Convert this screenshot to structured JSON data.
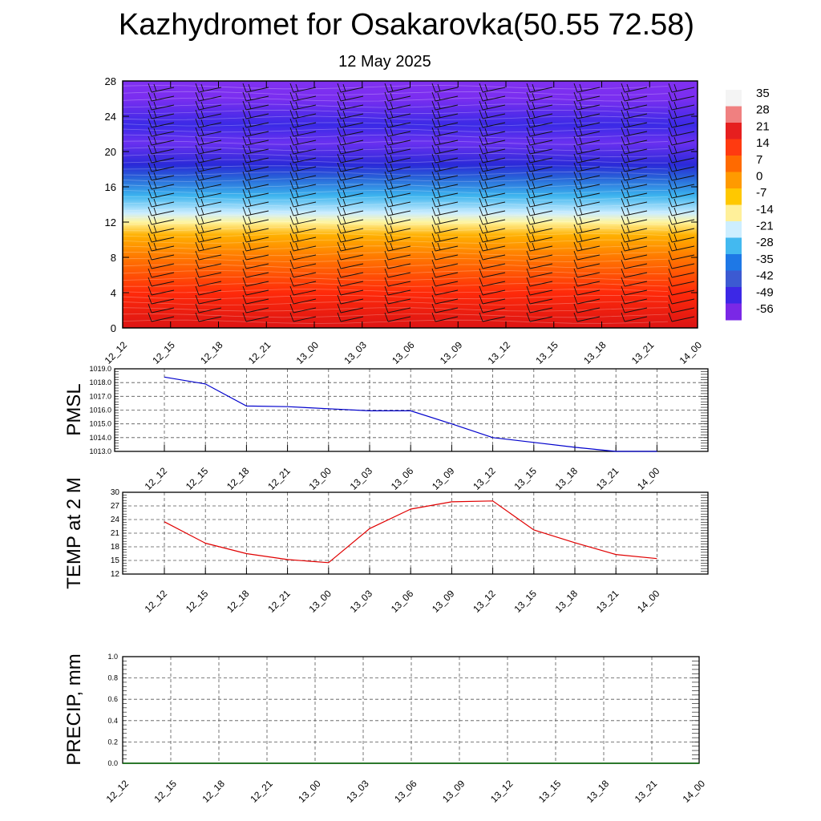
{
  "title": "Kazhydromet for Osakarovka(50.55 72.58)",
  "subtitle": "12 May 2025",
  "colors": {
    "pmsl_line": "#0000cc",
    "temp_line": "#e00000",
    "precip_line": "#006400",
    "grid": "#555555"
  },
  "chart_data": [
    {
      "type": "heatmap",
      "title": "",
      "x": [
        "12_12",
        "12_15",
        "12_18",
        "12_21",
        "13_00",
        "13_03",
        "13_06",
        "13_09",
        "13_12",
        "13_15",
        "13_18",
        "13_21",
        "14_00"
      ],
      "ylim": [
        0,
        28
      ],
      "yticks": [
        0,
        4,
        8,
        12,
        16,
        20,
        24,
        28
      ],
      "colorbar": {
        "labels": [
          "35",
          "28",
          "21",
          "14",
          "7",
          "0",
          "-7",
          "-14",
          "-21",
          "-28",
          "-35",
          "-42",
          "-49",
          "-56"
        ],
        "colors": [
          "#f4f4f4",
          "#f08080",
          "#e61f1f",
          "#ff3a10",
          "#ff6a00",
          "#ff9a00",
          "#ffc800",
          "#fff09a",
          "#cdeeff",
          "#43b9f0",
          "#1e78e6",
          "#3c5ad2",
          "#3c28e6",
          "#7a28e6"
        ]
      },
      "profile": [
        {
          "y": 0,
          "color": "#dc1414"
        },
        {
          "y": 4,
          "color": "#ff2a0a"
        },
        {
          "y": 8,
          "color": "#ff7800"
        },
        {
          "y": 10.5,
          "color": "#ffb000"
        },
        {
          "y": 12,
          "color": "#fff5a0"
        },
        {
          "y": 13,
          "color": "#cdeeff"
        },
        {
          "y": 15,
          "color": "#3cb4ee"
        },
        {
          "y": 17,
          "color": "#2864d8"
        },
        {
          "y": 18.5,
          "color": "#2a2ad8"
        },
        {
          "y": 21,
          "color": "#6a30f0"
        },
        {
          "y": 23,
          "color": "#3a2ae6"
        },
        {
          "y": 26,
          "color": "#7a2ef0"
        },
        {
          "y": 28,
          "color": "#8030f0"
        }
      ]
    },
    {
      "type": "line",
      "ylabel": "PMSL",
      "x": [
        "12_12",
        "12_15",
        "12_18",
        "12_21",
        "13_00",
        "13_03",
        "13_06",
        "13_09",
        "13_12",
        "13_15",
        "13_18",
        "13_21",
        "14_00"
      ],
      "ylim": [
        1013.0,
        1019.0
      ],
      "yticks": [
        "1013.0",
        "1014.0",
        "1015.0",
        "1016.0",
        "1017.0",
        "1018.0",
        "1019.0"
      ],
      "series": [
        {
          "values": [
            1018.4,
            1017.9,
            1016.3,
            1016.25,
            1016.1,
            1015.95,
            1015.95,
            1015.0,
            1014.0,
            1013.65,
            1013.3,
            1013.0,
            1013.0
          ]
        }
      ]
    },
    {
      "type": "line",
      "ylabel": "TEMP at 2 M",
      "x": [
        "12_12",
        "12_15",
        "12_18",
        "12_21",
        "13_00",
        "13_03",
        "13_06",
        "13_09",
        "13_12",
        "13_15",
        "13_18",
        "13_21",
        "14_00"
      ],
      "ylim": [
        12,
        30
      ],
      "yticks": [
        "12",
        "15",
        "18",
        "21",
        "24",
        "27",
        "30"
      ],
      "series": [
        {
          "values": [
            23.5,
            18.8,
            16.5,
            15.2,
            14.5,
            22.0,
            26.3,
            27.9,
            28.1,
            21.7,
            18.9,
            16.3,
            15.4
          ]
        }
      ]
    },
    {
      "type": "line",
      "ylabel": "PRECIP, mm",
      "x": [
        "12_12",
        "12_15",
        "12_18",
        "12_21",
        "13_00",
        "13_03",
        "13_06",
        "13_09",
        "13_12",
        "13_15",
        "13_18",
        "13_21",
        "14_00"
      ],
      "ylim": [
        0.0,
        1.0
      ],
      "yticks": [
        "0.0",
        "0.2",
        "0.4",
        "0.6",
        "0.8",
        "1.0"
      ],
      "series": [
        {
          "values": [
            0,
            0,
            0,
            0,
            0,
            0,
            0,
            0,
            0,
            0,
            0,
            0,
            0
          ]
        }
      ]
    }
  ]
}
